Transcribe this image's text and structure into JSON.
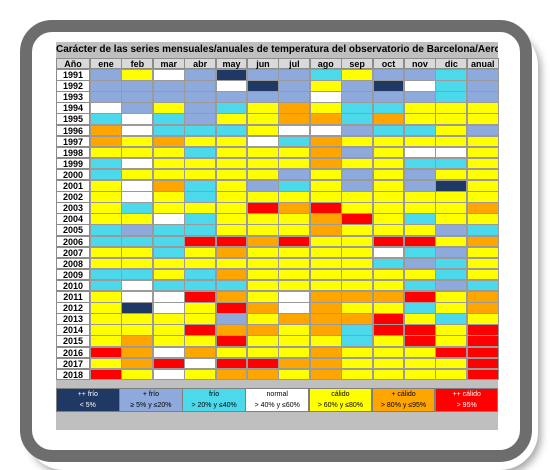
{
  "chart_data": {
    "type": "heatmap",
    "title": "Carácter de las series mensuales/anuales de temperatura del observatorio de Barcelona/Aeropuerto",
    "corner_label": "Año",
    "columns": [
      "ene",
      "feb",
      "mar",
      "abr",
      "may",
      "jun",
      "jul",
      "ago",
      "sep",
      "oct",
      "nov",
      "dic",
      "anual"
    ],
    "years": [
      "1991",
      "1992",
      "1993",
      "1994",
      "1995",
      "1996",
      "1997",
      "1998",
      "1999",
      "2000",
      "2001",
      "2002",
      "2003",
      "2004",
      "2005",
      "2006",
      "2007",
      "2008",
      "2009",
      "2010",
      "2011",
      "2012",
      "2013",
      "2014",
      "2015",
      "2016",
      "2017",
      "2018"
    ],
    "categories": [
      {
        "code": "EF",
        "label": "++ frío",
        "range": "< 5%",
        "color": "#1f3864",
        "text_color": "#ffffff"
      },
      {
        "code": "MF",
        "label": "+ frío",
        "range": "≥ 5% y ≤20%",
        "color": "#8ea9db",
        "text_color": "#000000"
      },
      {
        "code": "F",
        "label": "frío",
        "range": "> 20% y ≤40%",
        "color": "#4dd9ec",
        "text_color": "#000000"
      },
      {
        "code": "N",
        "label": "normal",
        "range": "> 40% y ≤60%",
        "color": "#ffffff",
        "text_color": "#000000"
      },
      {
        "code": "C",
        "label": "cálido",
        "range": "> 60% y ≤80%",
        "color": "#ffff00",
        "text_color": "#000000"
      },
      {
        "code": "MC",
        "label": "+ cálido",
        "range": "> 80% y ≤95%",
        "color": "#ffa500",
        "text_color": "#000000"
      },
      {
        "code": "EC",
        "label": "++ cálido",
        "range": "> 95%",
        "color": "#ff0000",
        "text_color": "#ffffff"
      }
    ],
    "rows": [
      [
        "MF",
        "C",
        "N",
        "MF",
        "EF",
        "MF",
        "MF",
        "F",
        "C",
        "MF",
        "MF",
        "F",
        "MF"
      ],
      [
        "MF",
        "MF",
        "MF",
        "MF",
        "N",
        "EF",
        "MF",
        "C",
        "MF",
        "EF",
        "N",
        "F",
        "MF"
      ],
      [
        "MF",
        "MF",
        "MF",
        "MF",
        "MF",
        "MF",
        "MF",
        "N",
        "MF",
        "MF",
        "MF",
        "F",
        "MF"
      ],
      [
        "N",
        "MF",
        "C",
        "MF",
        "F",
        "C",
        "MC",
        "C",
        "F",
        "F",
        "C",
        "C",
        "C"
      ],
      [
        "F",
        "N",
        "F",
        "MF",
        "C",
        "C",
        "MC",
        "MC",
        "F",
        "MC",
        "C",
        "C",
        "C"
      ],
      [
        "MC",
        "N",
        "F",
        "F",
        "F",
        "C",
        "N",
        "N",
        "MF",
        "F",
        "F",
        "C",
        "MF"
      ],
      [
        "MC",
        "C",
        "MC",
        "C",
        "C",
        "N",
        "F",
        "MC",
        "C",
        "C",
        "C",
        "C",
        "C"
      ],
      [
        "C",
        "C",
        "C",
        "F",
        "C",
        "C",
        "C",
        "MC",
        "MF",
        "C",
        "N",
        "N",
        "C"
      ],
      [
        "F",
        "N",
        "C",
        "C",
        "C",
        "C",
        "C",
        "MC",
        "C",
        "C",
        "F",
        "F",
        "C"
      ],
      [
        "F",
        "C",
        "C",
        "C",
        "C",
        "C",
        "MF",
        "C",
        "MF",
        "C",
        "MF",
        "C",
        "C"
      ],
      [
        "C",
        "N",
        "MC",
        "F",
        "C",
        "MF",
        "F",
        "C",
        "MF",
        "C",
        "MF",
        "EF",
        "C"
      ],
      [
        "C",
        "N",
        "C",
        "F",
        "C",
        "C",
        "C",
        "C",
        "C",
        "C",
        "C",
        "C",
        "C"
      ],
      [
        "C",
        "F",
        "C",
        "C",
        "C",
        "EC",
        "MC",
        "EC",
        "C",
        "C",
        "C",
        "C",
        "MC"
      ],
      [
        "C",
        "C",
        "N",
        "F",
        "C",
        "C",
        "C",
        "MC",
        "EC",
        "C",
        "F",
        "C",
        "C"
      ],
      [
        "F",
        "MF",
        "F",
        "F",
        "C",
        "C",
        "C",
        "MC",
        "C",
        "C",
        "C",
        "MF",
        "F"
      ],
      [
        "F",
        "F",
        "F",
        "EC",
        "EC",
        "MC",
        "EC",
        "C",
        "C",
        "EC",
        "EC",
        "C",
        "MC"
      ],
      [
        "C",
        "C",
        "F",
        "C",
        "MC",
        "C",
        "C",
        "C",
        "C",
        "N",
        "F",
        "MF",
        "C"
      ],
      [
        "C",
        "C",
        "C",
        "C",
        "C",
        "C",
        "C",
        "C",
        "C",
        "F",
        "MF",
        "F",
        "C"
      ],
      [
        "F",
        "F",
        "C",
        "F",
        "MC",
        "C",
        "C",
        "C",
        "C",
        "C",
        "C",
        "F",
        "C"
      ],
      [
        "F",
        "N",
        "F",
        "F",
        "F",
        "C",
        "C",
        "C",
        "C",
        "C",
        "F",
        "MF",
        "F"
      ],
      [
        "C",
        "N",
        "N",
        "EC",
        "MC",
        "C",
        "N",
        "MC",
        "MC",
        "MC",
        "EC",
        "C",
        "MC"
      ],
      [
        "C",
        "EF",
        "N",
        "C",
        "EC",
        "MC",
        "N",
        "MC",
        "C",
        "C",
        "F",
        "C",
        "MC"
      ],
      [
        "C",
        "C",
        "C",
        "C",
        "MF",
        "C",
        "MC",
        "MC",
        "MC",
        "EC",
        "C",
        "F",
        "C"
      ],
      [
        "C",
        "C",
        "C",
        "EC",
        "MC",
        "MC",
        "C",
        "MC",
        "F",
        "EC",
        "EC",
        "C",
        "EC"
      ],
      [
        "C",
        "MC",
        "C",
        "C",
        "EC",
        "C",
        "C",
        "C",
        "F",
        "C",
        "EC",
        "C",
        "EC"
      ],
      [
        "EC",
        "MC",
        "N",
        "MC",
        "C",
        "C",
        "C",
        "MC",
        "C",
        "C",
        "C",
        "EC",
        "EC"
      ],
      [
        "C",
        "MC",
        "EC",
        "N",
        "EC",
        "EC",
        "MC",
        "MC",
        "C",
        "C",
        "C",
        "C",
        "EC"
      ],
      [
        "EC",
        "C",
        "N",
        "C",
        "MC",
        "MC",
        "C",
        "MC",
        "C",
        "C",
        "C",
        "C",
        "EC"
      ]
    ]
  }
}
